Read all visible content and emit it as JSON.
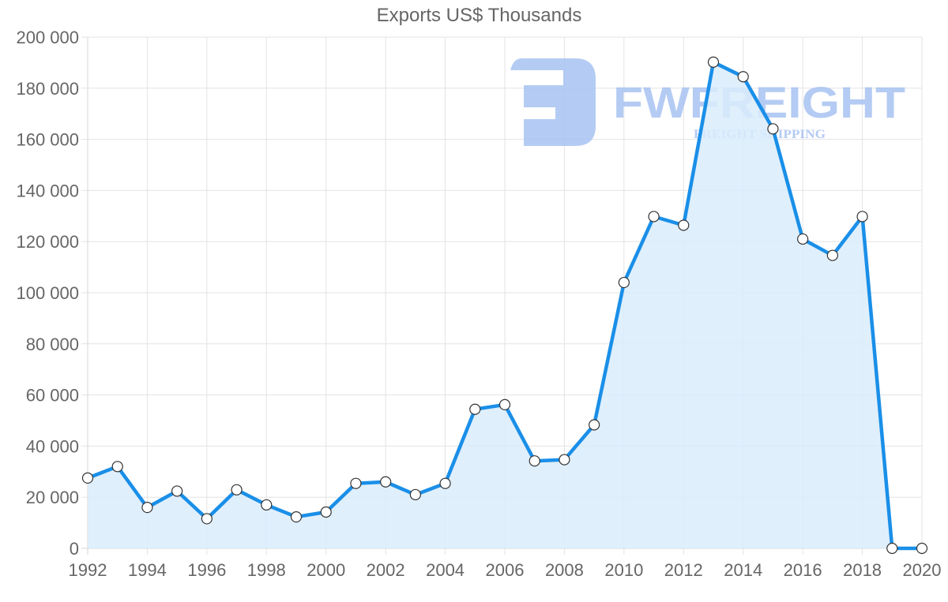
{
  "chart_data": {
    "type": "line",
    "title": "Exports US$ Thousands",
    "xlabel": "",
    "ylabel": "",
    "x": [
      1992,
      1993,
      1994,
      1995,
      1996,
      1997,
      1998,
      1999,
      2000,
      2001,
      2002,
      2003,
      2004,
      2005,
      2006,
      2007,
      2008,
      2009,
      2010,
      2011,
      2012,
      2013,
      2014,
      2015,
      2016,
      2017,
      2018,
      2019,
      2020
    ],
    "series": [
      {
        "name": "Exports US$ Thousands",
        "values": [
          27500,
          32000,
          16000,
          22400,
          11600,
          22900,
          17000,
          12300,
          14200,
          25400,
          26000,
          21000,
          25400,
          54400,
          56200,
          34200,
          34700,
          48300,
          104000,
          129800,
          126400,
          190200,
          184500,
          164100,
          121000,
          114600,
          129800,
          0,
          0
        ],
        "color": "#1a8fe8",
        "fill": "#d9ecfc",
        "area": true,
        "markers": {
          "fill": "#ffffff",
          "stroke": "#333333"
        }
      }
    ],
    "ylim": [
      0,
      200000
    ],
    "xlim": [
      1992,
      2020
    ],
    "y_ticks": [
      "0",
      "20 000",
      "40 000",
      "60 000",
      "80 000",
      "100 000",
      "120 000",
      "140 000",
      "160 000",
      "180 000",
      "200 000"
    ],
    "x_ticks": [
      "1992",
      "1994",
      "1996",
      "1998",
      "2000",
      "2002",
      "2004",
      "2006",
      "2008",
      "2010",
      "2012",
      "2014",
      "2016",
      "2018",
      "2020"
    ],
    "grid": true,
    "legend": "none"
  },
  "watermark": {
    "brand": "FWFREIGHT",
    "tagline": "FREIGHT SHIPPING",
    "color": "#a7c3f2"
  },
  "colors": {
    "grid": "#e3e3e3",
    "axis_text": "#666666",
    "title_text": "#666666"
  }
}
